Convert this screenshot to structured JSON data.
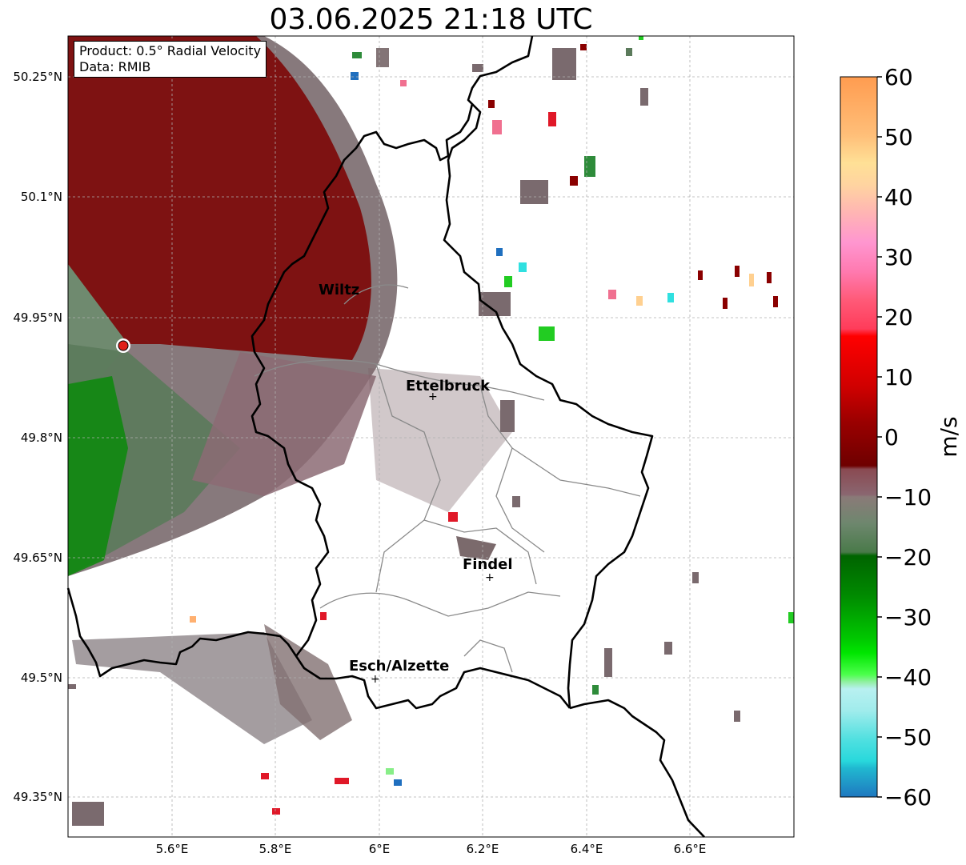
{
  "title": "03.06.2025 21:18 UTC",
  "info": {
    "product": "Product: 0.5° Radial Velocity",
    "source": "Data: RMIB"
  },
  "axes": {
    "lat_labels": [
      "50.25°N",
      "50.1°N",
      "49.95°N",
      "49.8°N",
      "49.65°N",
      "49.5°N",
      "49.35°N"
    ],
    "lon_labels": [
      "5.6°E",
      "5.8°E",
      "6°E",
      "6.2°E",
      "6.4°E",
      "6.6°E"
    ]
  },
  "colorbar": {
    "label": "m/s",
    "ticks": [
      "60",
      "50",
      "40",
      "30",
      "20",
      "10",
      "0",
      "−10",
      "−20",
      "−30",
      "−40",
      "−50",
      "−60"
    ],
    "range": [
      -60,
      60
    ]
  },
  "cities": [
    {
      "name": "Wiltz"
    },
    {
      "name": "Ettelbruck"
    },
    {
      "name": "Findel"
    },
    {
      "name": "Esch/Alzette"
    }
  ],
  "colors": {
    "border": "#000000",
    "grid": "#b0b0b0",
    "radar_site": "#e0201a"
  }
}
